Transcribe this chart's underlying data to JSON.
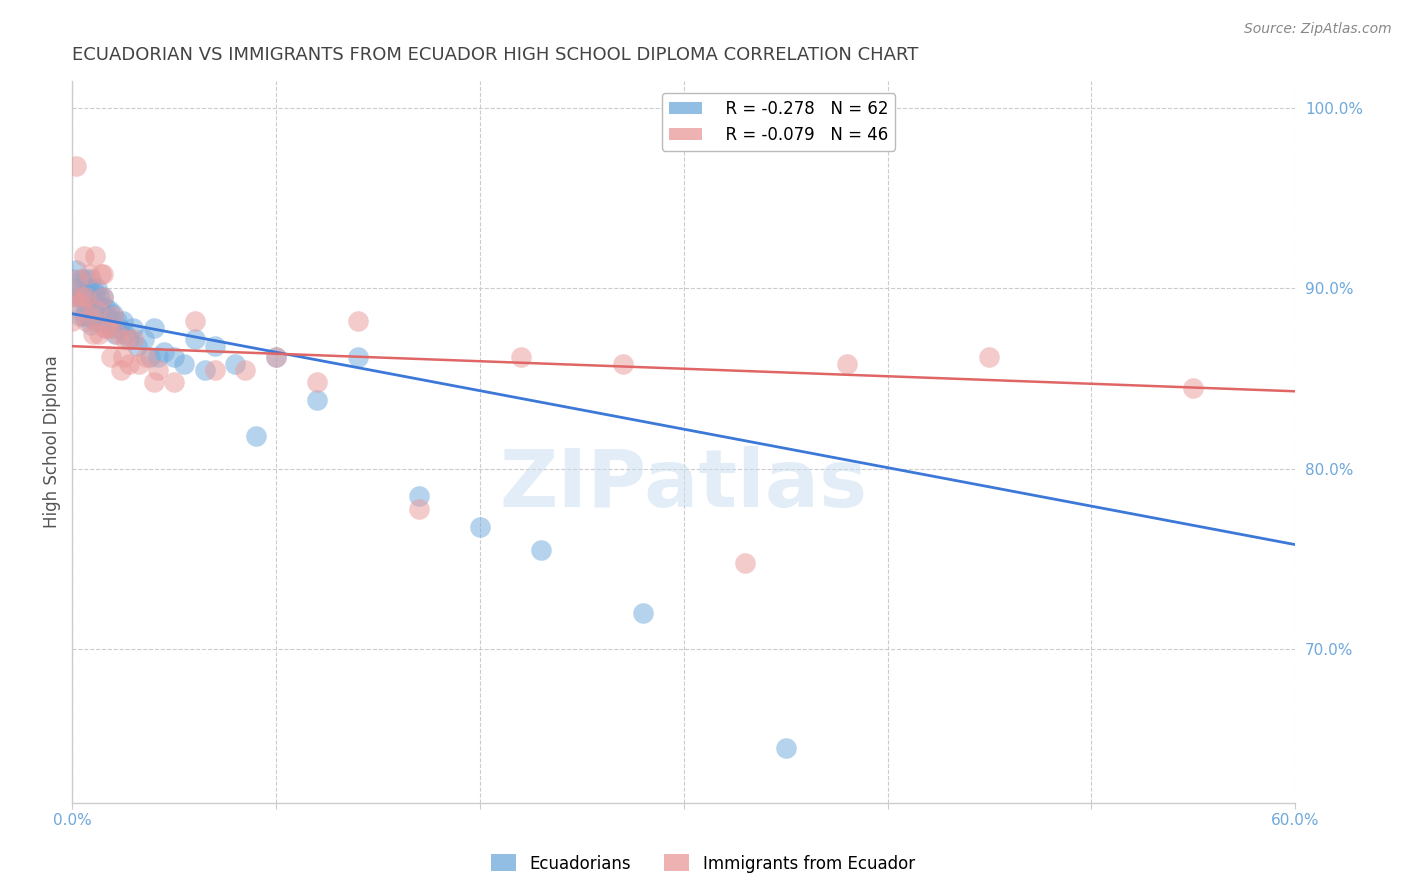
{
  "title": "ECUADORIAN VS IMMIGRANTS FROM ECUADOR HIGH SCHOOL DIPLOMA CORRELATION CHART",
  "source": "Source: ZipAtlas.com",
  "ylabel": "High School Diploma",
  "right_yticks": [
    "100.0%",
    "90.0%",
    "80.0%",
    "70.0%"
  ],
  "right_ytick_vals": [
    1.0,
    0.9,
    0.8,
    0.7
  ],
  "legend_blue_r": "R = -0.278",
  "legend_blue_n": "N = 62",
  "legend_pink_r": "R = -0.079",
  "legend_pink_n": "N = 46",
  "legend_label_blue": "Ecuadorians",
  "legend_label_pink": "Immigrants from Ecuador",
  "blue_color": "#6fa8dc",
  "pink_color": "#ea9999",
  "blue_line_color": "#3c78d8",
  "pink_line_color": "#e06666",
  "watermark": "ZIPatlas",
  "title_color": "#434343",
  "axis_label_color": "#6fa8dc",
  "blue_scatter_x": [
    0.0,
    0.0,
    0.002,
    0.003,
    0.004,
    0.004,
    0.005,
    0.005,
    0.006,
    0.006,
    0.007,
    0.007,
    0.008,
    0.008,
    0.009,
    0.009,
    0.009,
    0.01,
    0.01,
    0.011,
    0.011,
    0.012,
    0.012,
    0.013,
    0.013,
    0.014,
    0.015,
    0.015,
    0.016,
    0.016,
    0.017,
    0.018,
    0.019,
    0.02,
    0.021,
    0.022,
    0.023,
    0.025,
    0.026,
    0.028,
    0.03,
    0.032,
    0.035,
    0.038,
    0.04,
    0.042,
    0.045,
    0.05,
    0.055,
    0.06,
    0.065,
    0.07,
    0.08,
    0.09,
    0.1,
    0.12,
    0.14,
    0.17,
    0.2,
    0.23,
    0.28,
    0.35
  ],
  "blue_scatter_y": [
    0.905,
    0.895,
    0.91,
    0.9,
    0.895,
    0.885,
    0.905,
    0.895,
    0.9,
    0.885,
    0.905,
    0.89,
    0.9,
    0.885,
    0.905,
    0.895,
    0.88,
    0.9,
    0.885,
    0.895,
    0.882,
    0.9,
    0.888,
    0.896,
    0.882,
    0.89,
    0.895,
    0.882,
    0.89,
    0.878,
    0.885,
    0.888,
    0.878,
    0.886,
    0.875,
    0.882,
    0.878,
    0.882,
    0.875,
    0.872,
    0.878,
    0.868,
    0.872,
    0.862,
    0.878,
    0.862,
    0.865,
    0.862,
    0.858,
    0.872,
    0.855,
    0.868,
    0.858,
    0.818,
    0.862,
    0.838,
    0.862,
    0.785,
    0.768,
    0.755,
    0.72,
    0.645
  ],
  "pink_scatter_x": [
    0.0,
    0.0,
    0.002,
    0.003,
    0.004,
    0.005,
    0.006,
    0.007,
    0.007,
    0.008,
    0.009,
    0.01,
    0.011,
    0.012,
    0.013,
    0.014,
    0.015,
    0.016,
    0.018,
    0.019,
    0.02,
    0.022,
    0.024,
    0.026,
    0.028,
    0.03,
    0.033,
    0.036,
    0.04,
    0.042,
    0.05,
    0.06,
    0.07,
    0.085,
    0.1,
    0.12,
    0.14,
    0.17,
    0.22,
    0.27,
    0.33,
    0.38,
    0.45,
    0.55,
    0.025,
    0.015
  ],
  "pink_scatter_y": [
    0.895,
    0.882,
    0.968,
    0.905,
    0.892,
    0.895,
    0.918,
    0.895,
    0.882,
    0.908,
    0.885,
    0.875,
    0.918,
    0.888,
    0.875,
    0.908,
    0.895,
    0.878,
    0.878,
    0.862,
    0.885,
    0.875,
    0.855,
    0.872,
    0.858,
    0.872,
    0.858,
    0.862,
    0.848,
    0.855,
    0.848,
    0.882,
    0.855,
    0.855,
    0.862,
    0.848,
    0.882,
    0.778,
    0.862,
    0.858,
    0.748,
    0.858,
    0.862,
    0.845,
    0.862,
    0.908
  ],
  "xlim": [
    0.0,
    0.6
  ],
  "ylim": [
    0.615,
    1.015
  ],
  "blue_line_x": [
    0.0,
    0.6
  ],
  "blue_line_y": [
    0.886,
    0.758
  ],
  "pink_line_x": [
    0.0,
    0.6
  ],
  "pink_line_y": [
    0.868,
    0.843
  ]
}
